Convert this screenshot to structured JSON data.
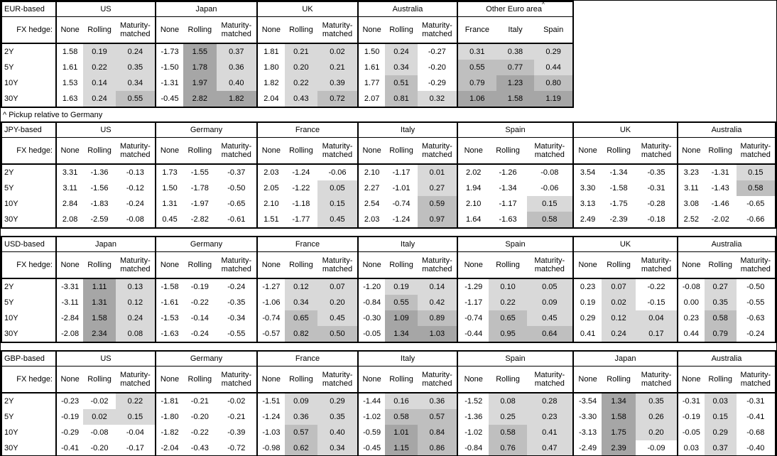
{
  "colors": {
    "light": "#d9d9d9",
    "medium": "#bfbfbf",
    "dark": "#a6a6a6",
    "border": "#000000",
    "background": "#ffffff"
  },
  "fx_hedge_label": "FX hedge:",
  "hedge_cols": [
    "None",
    "Rolling",
    "Maturity-matched"
  ],
  "row_labels": [
    "2Y",
    "5Y",
    "10Y",
    "30Y"
  ],
  "tables": [
    {
      "base": "EUR-based",
      "footnote": "^ Pickup relative to Germany",
      "groups": [
        {
          "name": "US",
          "rows": [
            [
              "1.58",
              "0.19",
              "0.24"
            ],
            [
              "1.61",
              "0.22",
              "0.35"
            ],
            [
              "1.53",
              "0.14",
              "0.34"
            ],
            [
              "1.63",
              "0.24",
              "0.55"
            ]
          ]
        },
        {
          "name": "Japan",
          "rows": [
            [
              "-1.73",
              "1.55",
              "0.37"
            ],
            [
              "-1.50",
              "1.78",
              "0.36"
            ],
            [
              "-1.31",
              "1.97",
              "0.40"
            ],
            [
              "-0.45",
              "2.82",
              "1.82"
            ]
          ]
        },
        {
          "name": "UK",
          "rows": [
            [
              "1.81",
              "0.21",
              "0.02"
            ],
            [
              "1.80",
              "0.20",
              "0.21"
            ],
            [
              "1.82",
              "0.22",
              "0.39"
            ],
            [
              "2.04",
              "0.43",
              "0.72"
            ]
          ]
        },
        {
          "name": "Australia",
          "rows": [
            [
              "1.50",
              "0.24",
              "-0.27"
            ],
            [
              "1.61",
              "0.34",
              "-0.20"
            ],
            [
              "1.77",
              "0.51",
              "-0.29"
            ],
            [
              "2.07",
              "0.81",
              "0.32"
            ]
          ]
        },
        {
          "name": "Other Euro area",
          "sup": "^",
          "cols": [
            "France",
            "Italy",
            "Spain"
          ],
          "rows": [
            [
              "0.31",
              "0.38",
              "0.29"
            ],
            [
              "0.55",
              "0.77",
              "0.44"
            ],
            [
              "0.79",
              "1.23",
              "0.80"
            ],
            [
              "1.06",
              "1.58",
              "1.19"
            ]
          ]
        }
      ]
    },
    {
      "base": "JPY-based",
      "groups": [
        {
          "name": "US",
          "rows": [
            [
              "3.31",
              "-1.36",
              "-0.13"
            ],
            [
              "3.11",
              "-1.56",
              "-0.12"
            ],
            [
              "2.84",
              "-1.83",
              "-0.24"
            ],
            [
              "2.08",
              "-2.59",
              "-0.08"
            ]
          ]
        },
        {
          "name": "Germany",
          "rows": [
            [
              "1.73",
              "-1.55",
              "-0.37"
            ],
            [
              "1.50",
              "-1.78",
              "-0.50"
            ],
            [
              "1.31",
              "-1.97",
              "-0.65"
            ],
            [
              "0.45",
              "-2.82",
              "-0.61"
            ]
          ]
        },
        {
          "name": "France",
          "rows": [
            [
              "2.03",
              "-1.24",
              "-0.06"
            ],
            [
              "2.05",
              "-1.22",
              "0.05"
            ],
            [
              "2.10",
              "-1.18",
              "0.15"
            ],
            [
              "1.51",
              "-1.77",
              "0.45"
            ]
          ]
        },
        {
          "name": "Italy",
          "rows": [
            [
              "2.10",
              "-1.17",
              "0.01"
            ],
            [
              "2.27",
              "-1.01",
              "0.27"
            ],
            [
              "2.54",
              "-0.74",
              "0.59"
            ],
            [
              "2.03",
              "-1.24",
              "0.97"
            ]
          ]
        },
        {
          "name": "Spain",
          "rows": [
            [
              "2.02",
              "-1.26",
              "-0.08"
            ],
            [
              "1.94",
              "-1.34",
              "-0.06"
            ],
            [
              "2.10",
              "-1.17",
              "0.15"
            ],
            [
              "1.64",
              "-1.63",
              "0.58"
            ]
          ]
        },
        {
          "name": "UK",
          "rows": [
            [
              "3.54",
              "-1.34",
              "-0.35"
            ],
            [
              "3.30",
              "-1.58",
              "-0.31"
            ],
            [
              "3.13",
              "-1.75",
              "-0.28"
            ],
            [
              "2.49",
              "-2.39",
              "-0.18"
            ]
          ]
        },
        {
          "name": "Australia",
          "rows": [
            [
              "3.23",
              "-1.31",
              "0.15"
            ],
            [
              "3.11",
              "-1.43",
              "0.58"
            ],
            [
              "3.08",
              "-1.46",
              "-0.65"
            ],
            [
              "2.52",
              "-2.02",
              "-0.66"
            ]
          ]
        }
      ]
    },
    {
      "base": "USD-based",
      "groups": [
        {
          "name": "Japan",
          "rows": [
            [
              "-3.31",
              "1.11",
              "0.13"
            ],
            [
              "-3.11",
              "1.31",
              "0.12"
            ],
            [
              "-2.84",
              "1.58",
              "0.24"
            ],
            [
              "-2.08",
              "2.34",
              "0.08"
            ]
          ]
        },
        {
          "name": "Germany",
          "rows": [
            [
              "-1.58",
              "-0.19",
              "-0.24"
            ],
            [
              "-1.61",
              "-0.22",
              "-0.35"
            ],
            [
              "-1.53",
              "-0.14",
              "-0.34"
            ],
            [
              "-1.63",
              "-0.24",
              "-0.55"
            ]
          ]
        },
        {
          "name": "France",
          "rows": [
            [
              "-1.27",
              "0.12",
              "0.07"
            ],
            [
              "-1.06",
              "0.34",
              "0.20"
            ],
            [
              "-0.74",
              "0.65",
              "0.45"
            ],
            [
              "-0.57",
              "0.82",
              "0.50"
            ]
          ]
        },
        {
          "name": "Italy",
          "rows": [
            [
              "-1.20",
              "0.19",
              "0.14"
            ],
            [
              "-0.84",
              "0.55",
              "0.42"
            ],
            [
              "-0.30",
              "1.09",
              "0.89"
            ],
            [
              "-0.05",
              "1.34",
              "1.03"
            ]
          ]
        },
        {
          "name": "Spain",
          "rows": [
            [
              "-1.29",
              "0.10",
              "0.05"
            ],
            [
              "-1.17",
              "0.22",
              "0.09"
            ],
            [
              "-0.74",
              "0.65",
              "0.45"
            ],
            [
              "-0.44",
              "0.95",
              "0.64"
            ]
          ]
        },
        {
          "name": "UK",
          "rows": [
            [
              "0.23",
              "0.07",
              "-0.22"
            ],
            [
              "0.19",
              "0.02",
              "-0.15"
            ],
            [
              "0.29",
              "0.12",
              "0.04"
            ],
            [
              "0.41",
              "0.24",
              "0.17"
            ]
          ]
        },
        {
          "name": "Australia",
          "rows": [
            [
              "-0.08",
              "0.27",
              "-0.50"
            ],
            [
              "0.00",
              "0.35",
              "-0.55"
            ],
            [
              "0.23",
              "0.58",
              "-0.63"
            ],
            [
              "0.44",
              "0.79",
              "-0.24"
            ]
          ]
        }
      ]
    },
    {
      "base": "GBP-based",
      "groups": [
        {
          "name": "US",
          "rows": [
            [
              "-0.23",
              "-0.02",
              "0.22"
            ],
            [
              "-0.19",
              "0.02",
              "0.15"
            ],
            [
              "-0.29",
              "-0.08",
              "-0.04"
            ],
            [
              "-0.41",
              "-0.20",
              "-0.17"
            ]
          ]
        },
        {
          "name": "Germany",
          "rows": [
            [
              "-1.81",
              "-0.21",
              "-0.02"
            ],
            [
              "-1.80",
              "-0.20",
              "-0.21"
            ],
            [
              "-1.82",
              "-0.22",
              "-0.39"
            ],
            [
              "-2.04",
              "-0.43",
              "-0.72"
            ]
          ]
        },
        {
          "name": "France",
          "rows": [
            [
              "-1.51",
              "0.09",
              "0.29"
            ],
            [
              "-1.24",
              "0.36",
              "0.35"
            ],
            [
              "-1.03",
              "0.57",
              "0.40"
            ],
            [
              "-0.98",
              "0.62",
              "0.34"
            ]
          ]
        },
        {
          "name": "Italy",
          "rows": [
            [
              "-1.44",
              "0.16",
              "0.36"
            ],
            [
              "-1.02",
              "0.58",
              "0.57"
            ],
            [
              "-0.59",
              "1.01",
              "0.84"
            ],
            [
              "-0.45",
              "1.15",
              "0.86"
            ]
          ]
        },
        {
          "name": "Spain",
          "rows": [
            [
              "-1.52",
              "0.08",
              "0.28"
            ],
            [
              "-1.36",
              "0.25",
              "0.23"
            ],
            [
              "-1.02",
              "0.58",
              "0.41"
            ],
            [
              "-0.84",
              "0.76",
              "0.47"
            ]
          ]
        },
        {
          "name": "Japan",
          "rows": [
            [
              "-3.54",
              "1.34",
              "0.35"
            ],
            [
              "-3.30",
              "1.58",
              "0.26"
            ],
            [
              "-3.13",
              "1.75",
              "0.20"
            ],
            [
              "-2.49",
              "2.39",
              "-0.09"
            ]
          ]
        },
        {
          "name": "Australia",
          "rows": [
            [
              "-0.31",
              "0.03",
              "-0.31"
            ],
            [
              "-0.19",
              "0.15",
              "-0.41"
            ],
            [
              "-0.05",
              "0.29",
              "-0.68"
            ],
            [
              "0.03",
              "0.37",
              "-0.40"
            ]
          ]
        }
      ]
    }
  ]
}
